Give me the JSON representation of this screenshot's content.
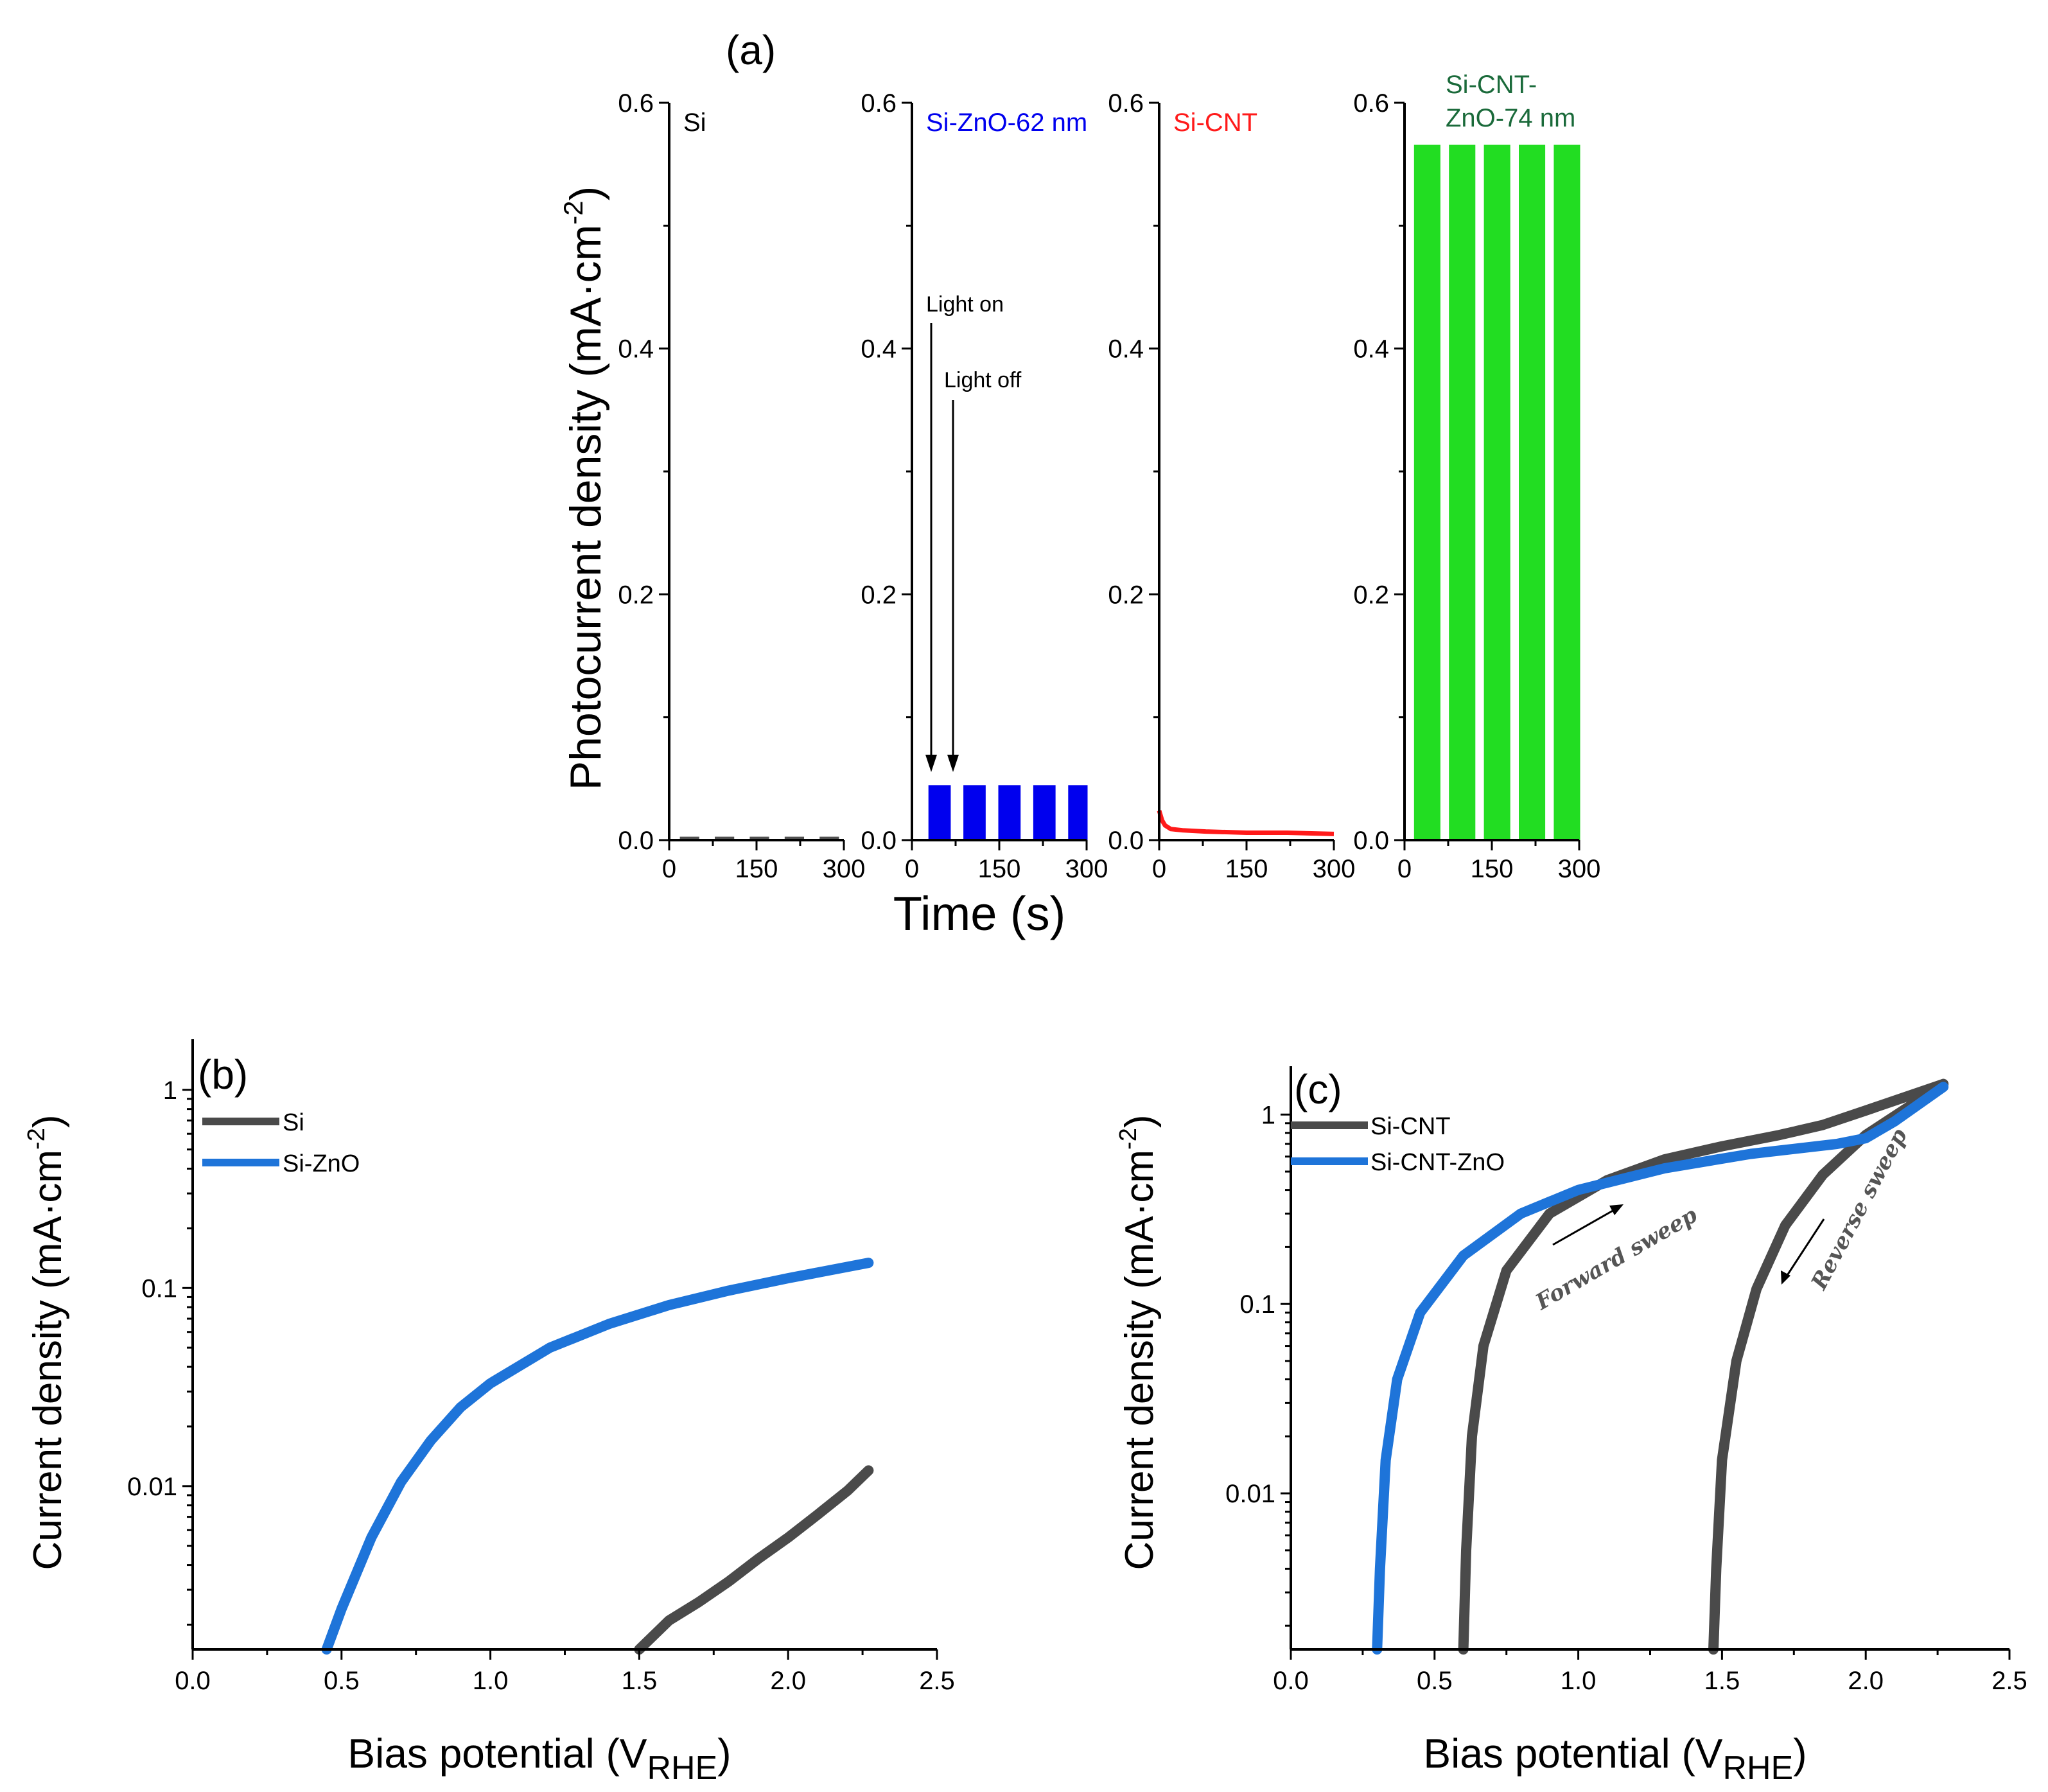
{
  "chart_data": [
    {
      "panel": "(a)",
      "type": "line",
      "ylabel": "Photocurrent density (mA·cm",
      "ylabel_sup": "-2",
      "ylabel_tail": ")",
      "xlabel": "Time (s)",
      "xticks": [
        0,
        150,
        300
      ],
      "yticks": [
        "0.0",
        "0.2",
        "0.4",
        "0.6"
      ],
      "xlim": [
        0,
        300
      ],
      "ylim": [
        0,
        0.6
      ],
      "light_on_label": "Light on",
      "light_off_label": "Light off",
      "subplots": [
        {
          "name": "Si",
          "color": "#505050",
          "label_color": "#000000",
          "type": "chopped",
          "on_value": 0.002,
          "off_value": 0.0,
          "period": 60,
          "on_duration": 30,
          "start": 20
        },
        {
          "name": "Si-ZnO-62 nm",
          "color": "#0000ee",
          "label_color": "#0000ee",
          "type": "chopped",
          "on_value": 0.044,
          "off_value": 0.0,
          "period": 60,
          "on_duration": 35,
          "start": 30
        },
        {
          "name": "Si-CNT",
          "color": "#ff1a1a",
          "label_color": "#ff1a1a",
          "type": "decay",
          "x": [
            0,
            5,
            10,
            20,
            40,
            80,
            150,
            220,
            300
          ],
          "y": [
            0.024,
            0.016,
            0.012,
            0.009,
            0.008,
            0.007,
            0.006,
            0.006,
            0.005
          ]
        },
        {
          "name": "Si-CNT-ZnO-74 nm",
          "label_line1": "Si-CNT-",
          "label_line2": "ZnO-74 nm",
          "color": "#22dd22",
          "label_color": "#1a6a3a",
          "type": "chopped",
          "on_value": 0.565,
          "off_value": 0.0,
          "period": 60,
          "on_duration": 42,
          "start": 18
        }
      ]
    },
    {
      "panel": "(b)",
      "type": "line",
      "yscale": "log",
      "ylabel": "Current density (mA·cm",
      "ylabel_sup": "-2",
      "ylabel_tail": ")",
      "xlabel": "Bias potential (V",
      "xlabel_sub": "RHE",
      "xlabel_tail": ")",
      "xlim": [
        0,
        2.5
      ],
      "ylim": [
        0.0015,
        1.8
      ],
      "xticks": [
        "0.0",
        "0.5",
        "1.0",
        "1.5",
        "2.0",
        "2.5"
      ],
      "yticks": [
        {
          "value": 0.01,
          "label": "0.01"
        },
        {
          "value": 0.1,
          "label": "0.1"
        },
        {
          "value": 1,
          "label": "1"
        }
      ],
      "series": [
        {
          "name": "Si",
          "color": "#4a4a4a",
          "x": [
            1.5,
            1.6,
            1.7,
            1.8,
            1.9,
            2.0,
            2.1,
            2.2,
            2.27
          ],
          "y": [
            0.0015,
            0.0021,
            0.0026,
            0.0033,
            0.0043,
            0.0055,
            0.0072,
            0.0095,
            0.012
          ]
        },
        {
          "name": "Si-ZnO",
          "color": "#1e74d9",
          "x": [
            0.45,
            0.5,
            0.6,
            0.7,
            0.8,
            0.9,
            1.0,
            1.2,
            1.4,
            1.6,
            1.8,
            2.0,
            2.27
          ],
          "y": [
            0.0015,
            0.0024,
            0.0055,
            0.0105,
            0.017,
            0.025,
            0.033,
            0.05,
            0.066,
            0.082,
            0.097,
            0.112,
            0.134
          ]
        }
      ]
    },
    {
      "panel": "(c)",
      "type": "line",
      "yscale": "log",
      "ylabel": "Current density (mA·cm",
      "ylabel_sup": "-2",
      "ylabel_tail": ")",
      "xlabel": "Bias potential (V",
      "xlabel_sub": "RHE",
      "xlabel_tail": ")",
      "xlim": [
        0,
        2.5
      ],
      "ylim": [
        0.0015,
        1.8
      ],
      "xticks": [
        "0.0",
        "0.5",
        "1.0",
        "1.5",
        "2.0",
        "2.5"
      ],
      "yticks": [
        {
          "value": 0.01,
          "label": "0.01"
        },
        {
          "value": 0.1,
          "label": "0.1"
        },
        {
          "value": 1,
          "label": "1"
        }
      ],
      "annotations": [
        "Forward sweep",
        "Reverse sweep"
      ],
      "series": [
        {
          "name": "Si-CNT",
          "color": "#4a4a4a",
          "x": [
            0.6,
            0.61,
            0.63,
            0.67,
            0.75,
            0.9,
            1.1,
            1.3,
            1.5,
            1.7,
            1.85,
            2.0,
            2.27
          ],
          "y": [
            0.0015,
            0.005,
            0.02,
            0.06,
            0.15,
            0.3,
            0.45,
            0.58,
            0.68,
            0.78,
            0.88,
            1.05,
            1.45
          ],
          "x2": [
            1.47,
            1.48,
            1.5,
            1.55,
            1.62,
            1.72,
            1.85,
            2.0,
            2.15,
            2.27
          ],
          "y2": [
            0.0015,
            0.004,
            0.015,
            0.05,
            0.12,
            0.26,
            0.48,
            0.78,
            1.1,
            1.45
          ]
        },
        {
          "name": "Si-CNT-ZnO",
          "color": "#1e74d9",
          "x": [
            0.3,
            0.31,
            0.33,
            0.37,
            0.45,
            0.6,
            0.8,
            1.0,
            1.3,
            1.6,
            1.9,
            2.0,
            2.1,
            2.27
          ],
          "y": [
            0.0015,
            0.004,
            0.015,
            0.04,
            0.09,
            0.18,
            0.3,
            0.4,
            0.52,
            0.62,
            0.7,
            0.75,
            0.92,
            1.4
          ]
        }
      ]
    }
  ]
}
